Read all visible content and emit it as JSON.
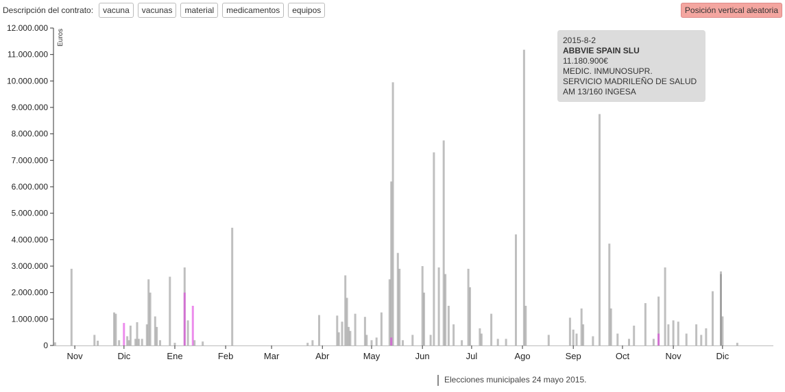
{
  "filters": {
    "label": "Descripción del contrato:",
    "chips": [
      "vacuna",
      "vacunas",
      "material",
      "medicamentos",
      "equipos"
    ]
  },
  "random_button": "Posición vertical aleatoria",
  "tooltip": {
    "date": "2015-8-2",
    "name": "ABBVIE SPAIN SLU",
    "amount": "11.180.900€",
    "description": "MEDIC. INMUNOSUPR.",
    "buyer": "SERVICIO MADRILEÑO DE SALUD",
    "contract": "AM 13/160 INGESA"
  },
  "election_note": "Elecciones municipales 24 mayo 2015.",
  "colors": {
    "bar": "#8a8a8a",
    "highlight": "#e040e0",
    "axis": "#333333"
  },
  "chart_data": {
    "type": "bar",
    "ylabel": "Euros",
    "ylim": [
      0,
      12000000
    ],
    "yticks": [
      0,
      1000000,
      2000000,
      3000000,
      4000000,
      5000000,
      6000000,
      7000000,
      8000000,
      9000000,
      10000000,
      11000000,
      12000000
    ],
    "ytick_labels": [
      "0",
      "1.000.000",
      "2.000.000",
      "3.000.000",
      "4.000.000",
      "5.000.000",
      "6.000.000",
      "7.000.000",
      "8.000.000",
      "9.000.000",
      "10.000.000",
      "11.000.000",
      "12.000.000"
    ],
    "xlim": [
      "2014-10-19",
      "2016-01-01"
    ],
    "xticks": [
      {
        "date": "2014-11-01",
        "label": "Nov"
      },
      {
        "date": "2014-12-01",
        "label": "Dic"
      },
      {
        "date": "2015-01-01",
        "label": "Ene"
      },
      {
        "date": "2015-02-01",
        "label": "Feb"
      },
      {
        "date": "2015-03-01",
        "label": "Mar"
      },
      {
        "date": "2015-04-01",
        "label": "Abr"
      },
      {
        "date": "2015-05-01",
        "label": "May"
      },
      {
        "date": "2015-06-01",
        "label": "Jun"
      },
      {
        "date": "2015-07-01",
        "label": "Jul"
      },
      {
        "date": "2015-08-01",
        "label": "Ago"
      },
      {
        "date": "2015-09-01",
        "label": "Sep"
      },
      {
        "date": "2015-10-01",
        "label": "Oct"
      },
      {
        "date": "2015-11-01",
        "label": "Nov"
      },
      {
        "date": "2015-12-01",
        "label": "Dic"
      }
    ],
    "bars": [
      {
        "date": "2014-10-20",
        "value": 120000
      },
      {
        "date": "2014-10-30",
        "value": 2900000
      },
      {
        "date": "2014-11-13",
        "value": 400000
      },
      {
        "date": "2014-11-15",
        "value": 180000
      },
      {
        "date": "2014-11-25",
        "value": 1250000
      },
      {
        "date": "2014-11-26",
        "value": 1200000
      },
      {
        "date": "2014-11-28",
        "value": 200000
      },
      {
        "date": "2014-12-01",
        "value": 850000,
        "highlight": true
      },
      {
        "date": "2014-12-03",
        "value": 350000
      },
      {
        "date": "2014-12-04",
        "value": 200000
      },
      {
        "date": "2014-12-05",
        "value": 750000
      },
      {
        "date": "2014-12-08",
        "value": 250000
      },
      {
        "date": "2014-12-09",
        "value": 880000
      },
      {
        "date": "2014-12-10",
        "value": 250000
      },
      {
        "date": "2014-12-12",
        "value": 250000
      },
      {
        "date": "2014-12-15",
        "value": 800000
      },
      {
        "date": "2014-12-16",
        "value": 2500000
      },
      {
        "date": "2014-12-17",
        "value": 2000000
      },
      {
        "date": "2014-12-20",
        "value": 1100000
      },
      {
        "date": "2014-12-21",
        "value": 700000
      },
      {
        "date": "2014-12-23",
        "value": 200000
      },
      {
        "date": "2014-12-29",
        "value": 2600000
      },
      {
        "date": "2015-01-01",
        "value": 100000
      },
      {
        "date": "2015-01-07",
        "value": 2950000
      },
      {
        "date": "2015-01-07",
        "value": 2000000,
        "highlight": true
      },
      {
        "date": "2015-01-09",
        "value": 950000
      },
      {
        "date": "2015-01-12",
        "value": 1500000,
        "highlight": true
      },
      {
        "date": "2015-01-13",
        "value": 200000
      },
      {
        "date": "2015-01-18",
        "value": 150000
      },
      {
        "date": "2015-02-05",
        "value": 4450000
      },
      {
        "date": "2015-03-23",
        "value": 100000
      },
      {
        "date": "2015-03-26",
        "value": 200000
      },
      {
        "date": "2015-03-30",
        "value": 1150000
      },
      {
        "date": "2015-04-10",
        "value": 1130000
      },
      {
        "date": "2015-04-11",
        "value": 500000
      },
      {
        "date": "2015-04-13",
        "value": 900000
      },
      {
        "date": "2015-04-15",
        "value": 2650000
      },
      {
        "date": "2015-04-16",
        "value": 1800000
      },
      {
        "date": "2015-04-17",
        "value": 700000
      },
      {
        "date": "2015-04-18",
        "value": 550000
      },
      {
        "date": "2015-04-21",
        "value": 1200000
      },
      {
        "date": "2015-04-27",
        "value": 1080000
      },
      {
        "date": "2015-04-28",
        "value": 400000
      },
      {
        "date": "2015-05-01",
        "value": 200000
      },
      {
        "date": "2015-05-04",
        "value": 300000
      },
      {
        "date": "2015-05-07",
        "value": 1250000
      },
      {
        "date": "2015-05-12",
        "value": 2500000
      },
      {
        "date": "2015-05-13",
        "value": 6200000
      },
      {
        "date": "2015-05-14",
        "value": 9950000
      },
      {
        "date": "2015-05-13",
        "value": 300000,
        "highlight": true
      },
      {
        "date": "2015-05-17",
        "value": 3500000
      },
      {
        "date": "2015-05-18",
        "value": 2900000
      },
      {
        "date": "2015-05-20",
        "value": 200000
      },
      {
        "date": "2015-05-26",
        "value": 400000
      },
      {
        "date": "2015-06-01",
        "value": 3000000
      },
      {
        "date": "2015-06-02",
        "value": 2000000
      },
      {
        "date": "2015-06-06",
        "value": 400000
      },
      {
        "date": "2015-06-08",
        "value": 7300000
      },
      {
        "date": "2015-06-11",
        "value": 2950000
      },
      {
        "date": "2015-06-14",
        "value": 7750000
      },
      {
        "date": "2015-06-15",
        "value": 2700000
      },
      {
        "date": "2015-06-17",
        "value": 1500000
      },
      {
        "date": "2015-06-20",
        "value": 800000
      },
      {
        "date": "2015-06-25",
        "value": 200000
      },
      {
        "date": "2015-06-29",
        "value": 2900000
      },
      {
        "date": "2015-06-30",
        "value": 2200000
      },
      {
        "date": "2015-07-06",
        "value": 650000
      },
      {
        "date": "2015-07-07",
        "value": 450000
      },
      {
        "date": "2015-07-13",
        "value": 1200000
      },
      {
        "date": "2015-07-17",
        "value": 250000
      },
      {
        "date": "2015-07-22",
        "value": 250000
      },
      {
        "date": "2015-07-28",
        "value": 4200000
      },
      {
        "date": "2015-08-02",
        "value": 11180900
      },
      {
        "date": "2015-08-03",
        "value": 1500000
      },
      {
        "date": "2015-08-17",
        "value": 400000
      },
      {
        "date": "2015-08-30",
        "value": 1050000
      },
      {
        "date": "2015-09-01",
        "value": 600000
      },
      {
        "date": "2015-09-03",
        "value": 450000
      },
      {
        "date": "2015-09-06",
        "value": 1400000
      },
      {
        "date": "2015-09-07",
        "value": 800000
      },
      {
        "date": "2015-09-13",
        "value": 350000
      },
      {
        "date": "2015-09-17",
        "value": 8750000
      },
      {
        "date": "2015-09-23",
        "value": 3850000
      },
      {
        "date": "2015-09-24",
        "value": 1400000
      },
      {
        "date": "2015-09-28",
        "value": 450000
      },
      {
        "date": "2015-10-05",
        "value": 250000
      },
      {
        "date": "2015-10-08",
        "value": 750000
      },
      {
        "date": "2015-10-15",
        "value": 1600000
      },
      {
        "date": "2015-10-20",
        "value": 250000
      },
      {
        "date": "2015-10-23",
        "value": 1850000
      },
      {
        "date": "2015-10-23",
        "value": 450000,
        "highlight": true
      },
      {
        "date": "2015-10-27",
        "value": 2950000
      },
      {
        "date": "2015-10-29",
        "value": 800000
      },
      {
        "date": "2015-11-01",
        "value": 950000
      },
      {
        "date": "2015-11-04",
        "value": 900000
      },
      {
        "date": "2015-11-09",
        "value": 450000
      },
      {
        "date": "2015-11-15",
        "value": 800000
      },
      {
        "date": "2015-11-18",
        "value": 400000
      },
      {
        "date": "2015-11-21",
        "value": 650000
      },
      {
        "date": "2015-11-25",
        "value": 2050000
      },
      {
        "date": "2015-11-30",
        "value": 2800000
      },
      {
        "date": "2015-11-30",
        "value": 2700000
      },
      {
        "date": "2015-12-01",
        "value": 1100000
      },
      {
        "date": "2015-12-10",
        "value": 100000
      }
    ]
  }
}
